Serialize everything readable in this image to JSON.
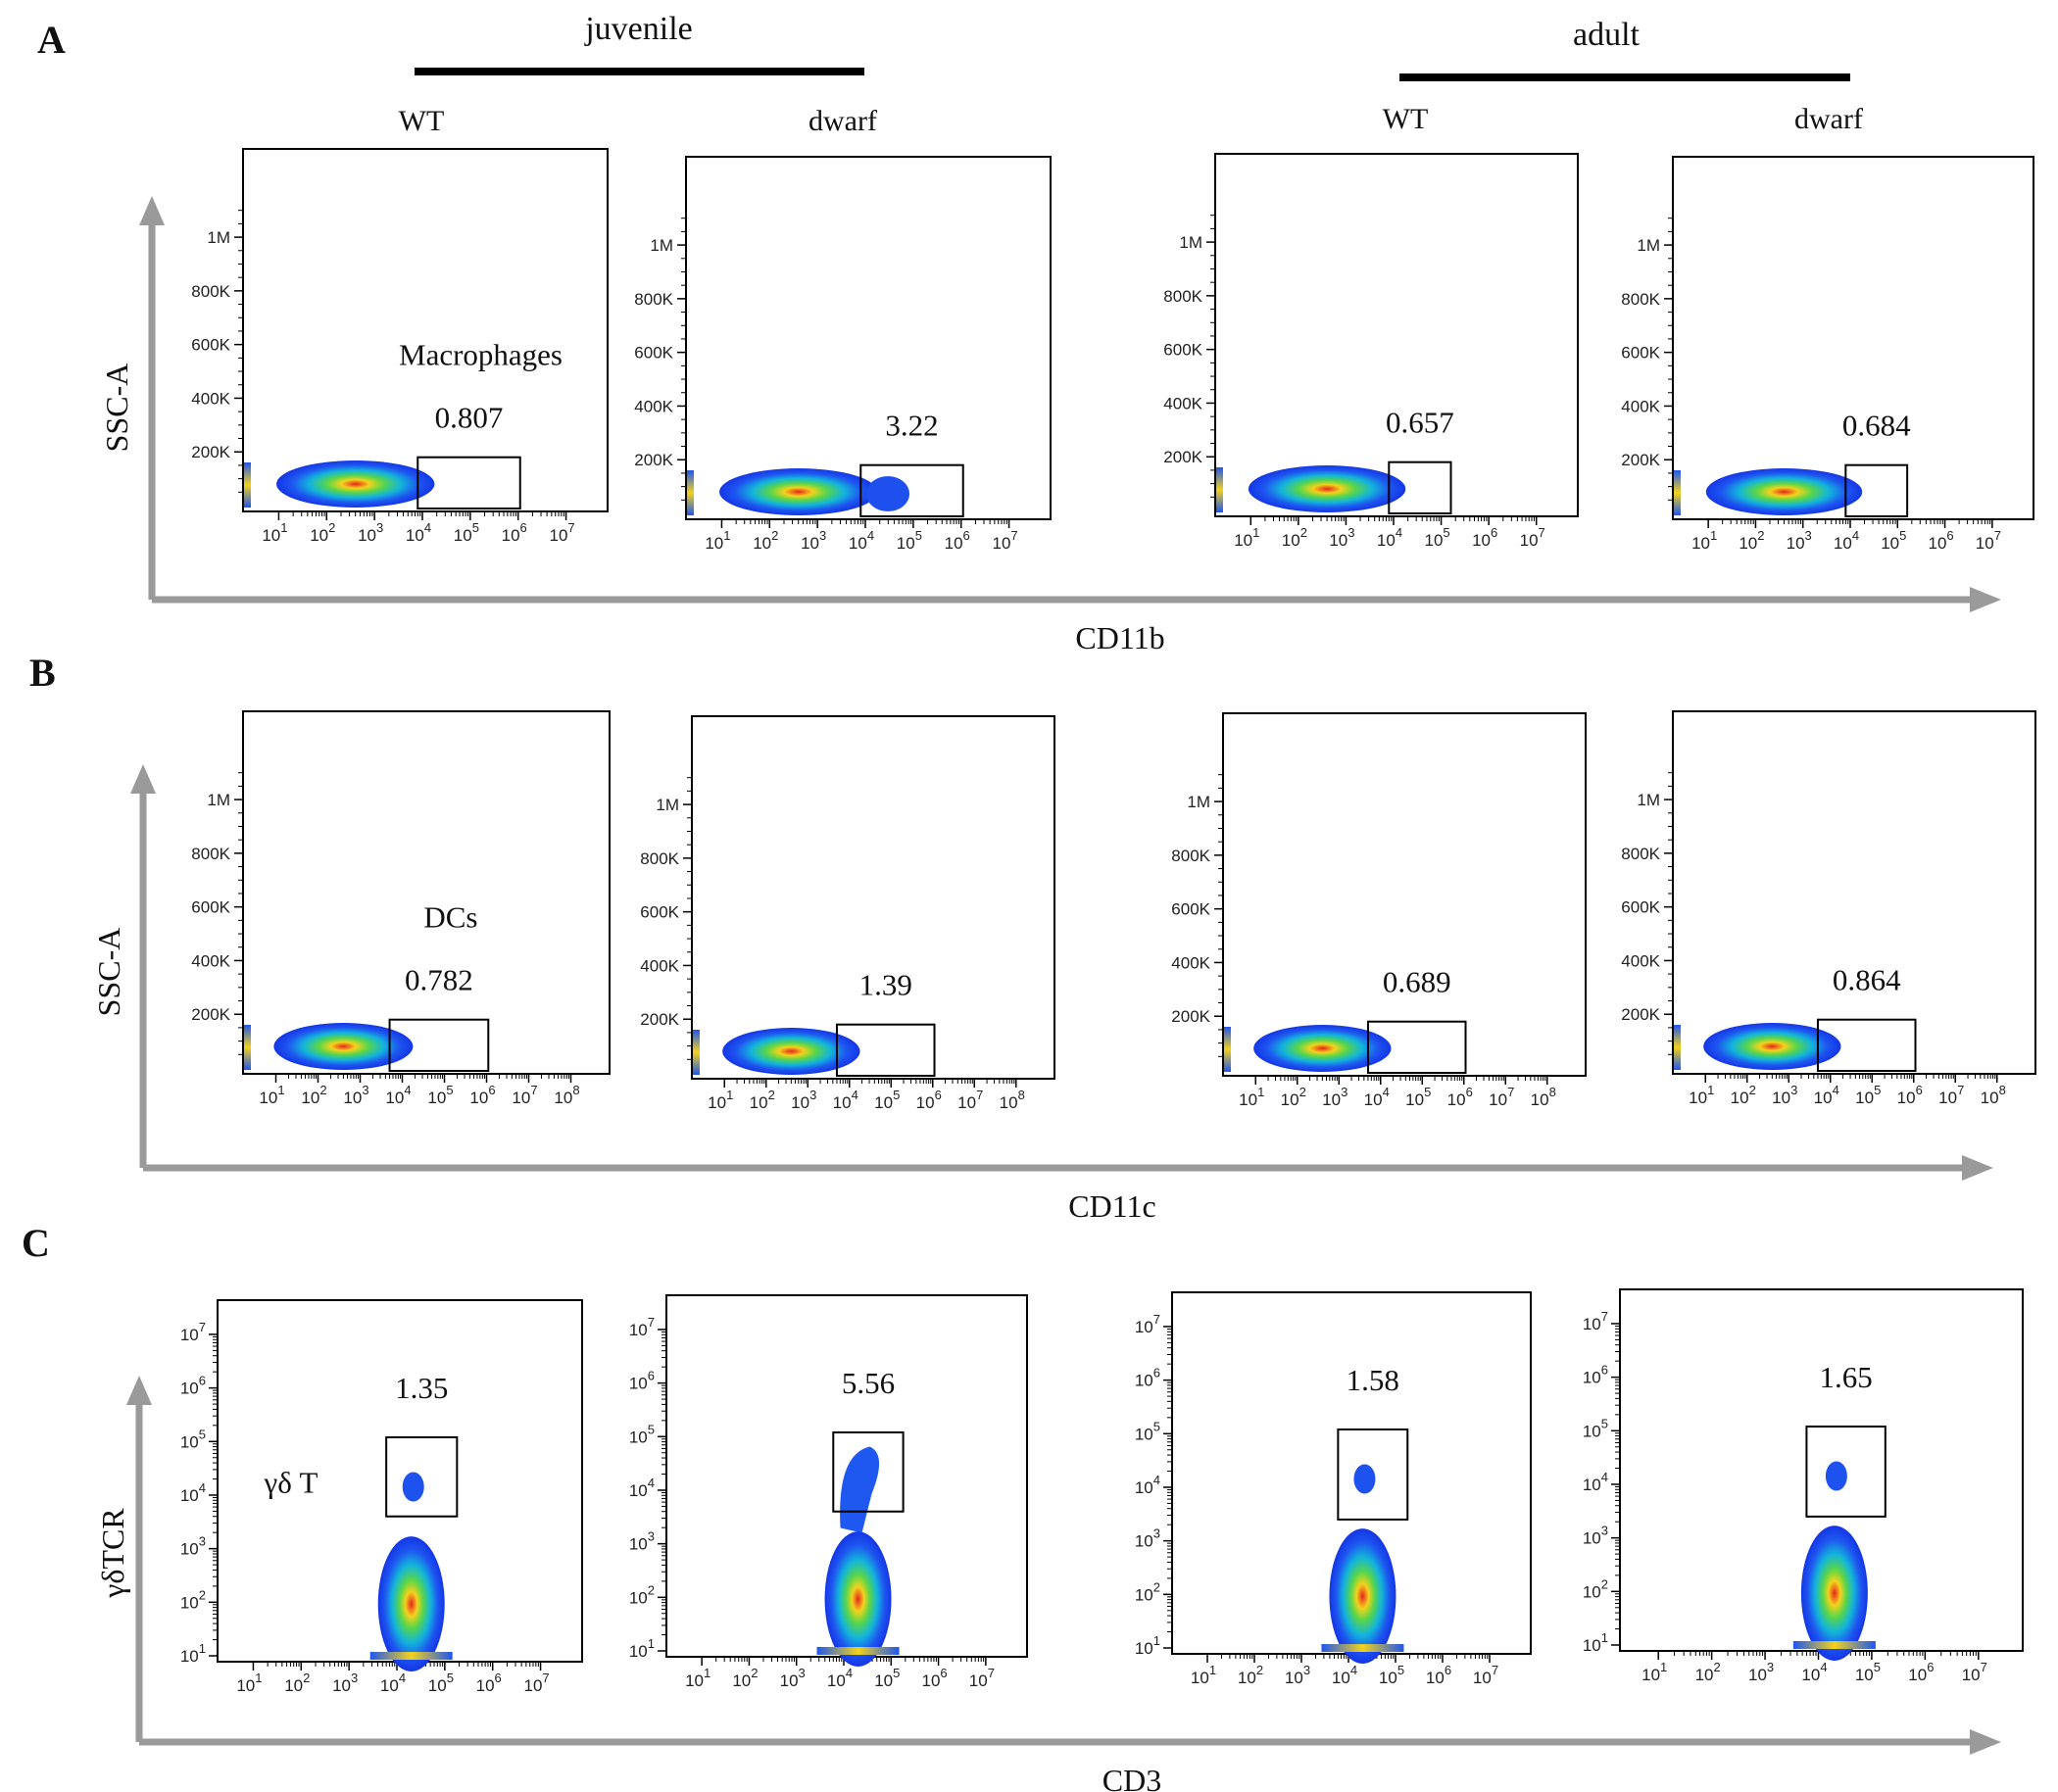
{
  "figure": {
    "groups": [
      {
        "label": "juvenile"
      },
      {
        "label": "adult"
      }
    ],
    "columns": [
      "WT",
      "dwarf",
      "WT",
      "dwarf"
    ]
  },
  "chart_data": [
    {
      "panel": "A",
      "type": "density-plot",
      "xlabel": "CD11b",
      "ylabel": "SSC-A",
      "x_scale": "log",
      "y_scale": "linear",
      "x_ticks": [
        "10^1",
        "10^2",
        "10^3",
        "10^4",
        "10^5",
        "10^6",
        "10^7"
      ],
      "y_ticks": [
        "200K",
        "400K",
        "600K",
        "800K",
        "1M"
      ],
      "gate_label": "Macrophages",
      "plots": [
        {
          "group": "juvenile",
          "sample": "WT",
          "gate_percent": "0.807",
          "gate_x": [
            8000,
            1100000
          ],
          "gate_y": [
            0,
            180000
          ]
        },
        {
          "group": "juvenile",
          "sample": "dwarf",
          "gate_percent": "3.22",
          "gate_x": [
            8000,
            1100000
          ],
          "gate_y": [
            0,
            180000
          ]
        },
        {
          "group": "adult",
          "sample": "WT",
          "gate_percent": "0.657",
          "gate_x": [
            8000,
            160000
          ],
          "gate_y": [
            0,
            180000
          ]
        },
        {
          "group": "adult",
          "sample": "dwarf",
          "gate_percent": "0.684",
          "gate_x": [
            8000,
            160000
          ],
          "gate_y": [
            0,
            180000
          ]
        }
      ]
    },
    {
      "panel": "B",
      "type": "density-plot",
      "xlabel": "CD11c",
      "ylabel": "SSC-A",
      "x_scale": "log",
      "y_scale": "linear",
      "x_ticks": [
        "10^1",
        "10^2",
        "10^3",
        "10^4",
        "10^5",
        "10^6",
        "10^7",
        "10^8"
      ],
      "y_ticks": [
        "200K",
        "400K",
        "600K",
        "800K",
        "1M"
      ],
      "gate_label": "DCs",
      "plots": [
        {
          "group": "juvenile",
          "sample": "WT",
          "gate_percent": "0.782",
          "gate_x": [
            5000,
            1100000
          ],
          "gate_y": [
            0,
            180000
          ]
        },
        {
          "group": "juvenile",
          "sample": "dwarf",
          "gate_percent": "1.39",
          "gate_x": [
            5000,
            1100000
          ],
          "gate_y": [
            0,
            180000
          ]
        },
        {
          "group": "adult",
          "sample": "WT",
          "gate_percent": "0.689",
          "gate_x": [
            5000,
            1100000
          ],
          "gate_y": [
            0,
            180000
          ]
        },
        {
          "group": "adult",
          "sample": "dwarf",
          "gate_percent": "0.864",
          "gate_x": [
            5000,
            1100000
          ],
          "gate_y": [
            0,
            180000
          ]
        }
      ]
    },
    {
      "panel": "C",
      "type": "density-plot",
      "xlabel": "CD3",
      "ylabel": "γδTCR",
      "x_scale": "log",
      "y_scale": "log",
      "x_ticks": [
        "10^1",
        "10^2",
        "10^3",
        "10^4",
        "10^5",
        "10^6",
        "10^7"
      ],
      "y_ticks": [
        "10^1",
        "10^2",
        "10^3",
        "10^4",
        "10^5",
        "10^6",
        "10^7"
      ],
      "gate_label": "γδ T",
      "plots": [
        {
          "group": "juvenile",
          "sample": "WT",
          "gate_percent": "1.35",
          "gate_x": [
            6000,
            180000
          ],
          "gate_y": [
            4000,
            120000
          ]
        },
        {
          "group": "juvenile",
          "sample": "dwarf",
          "gate_percent": "5.56",
          "gate_x": [
            6000,
            180000
          ],
          "gate_y": [
            4000,
            120000
          ]
        },
        {
          "group": "adult",
          "sample": "WT",
          "gate_percent": "1.58",
          "gate_x": [
            6000,
            180000
          ],
          "gate_y": [
            2500,
            120000
          ]
        },
        {
          "group": "adult",
          "sample": "dwarf",
          "gate_percent": "1.65",
          "gate_x": [
            6000,
            180000
          ],
          "gate_y": [
            2500,
            120000
          ]
        }
      ]
    }
  ]
}
